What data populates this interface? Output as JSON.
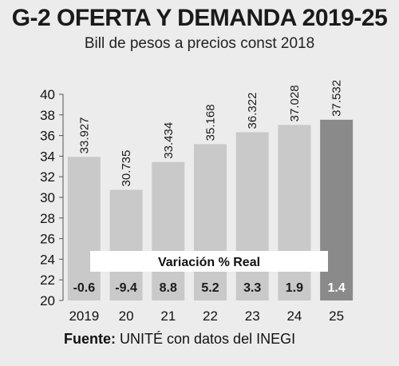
{
  "chart_data": {
    "type": "bar",
    "title": "G-2 OFERTA Y DEMANDA 2019-25",
    "subtitle": "Bill de pesos a precios const 2018",
    "categories": [
      "2019",
      "20",
      "21",
      "22",
      "23",
      "24",
      "25"
    ],
    "values": [
      33.927,
      30.735,
      33.434,
      35.168,
      36.322,
      37.028,
      37.532
    ],
    "value_labels": [
      "33.927",
      "30.735",
      "33.434",
      "35.168",
      "36.322",
      "37.028",
      "37.532"
    ],
    "variation_label": "Variación % Real",
    "variation": [
      "-0.6",
      "-9.4",
      "8.8",
      "5.2",
      "3.3",
      "1.9",
      "1.4"
    ],
    "yticks": [
      "20",
      "22",
      "24",
      "26",
      "28",
      "30",
      "32",
      "34",
      "36",
      "38",
      "40"
    ],
    "ylim": [
      20,
      40
    ],
    "grid": false,
    "highlight_index": 6
  },
  "source_label": "Fuente:",
  "source_text": " UNITÉ con datos del INEGI",
  "colors": {
    "bar": "#c9c9c9",
    "bar_highlight": "#8a8a8a",
    "background": "#ececec",
    "axis": "#555555",
    "band": "#ffffff"
  }
}
